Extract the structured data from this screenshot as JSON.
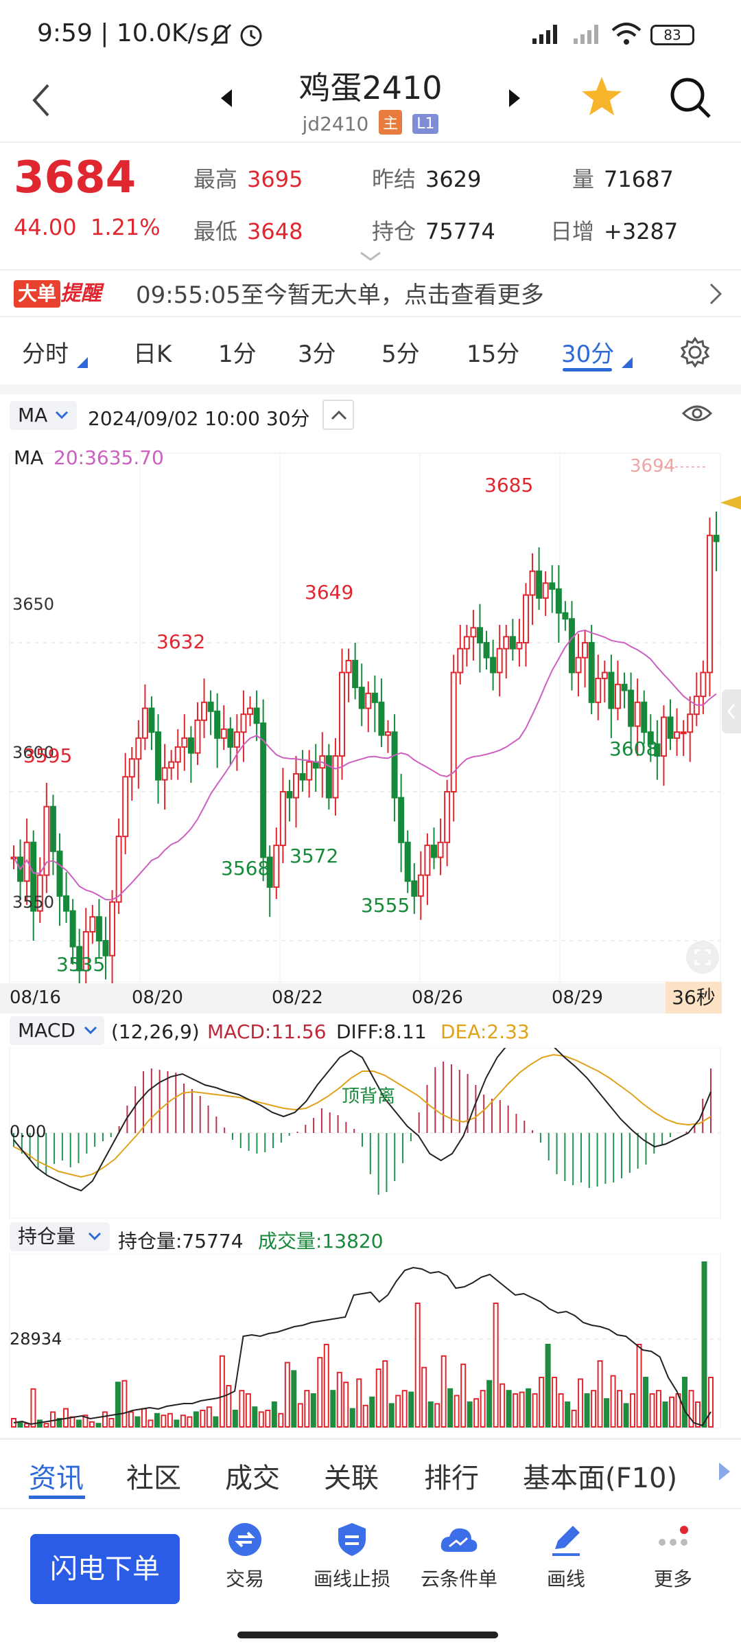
{
  "status_bar": {
    "time": "9:59 | 10.0K/s",
    "battery": "83"
  },
  "header": {
    "title": "鸡蛋2410",
    "code": "jd2410",
    "badge_main": "主",
    "badge_l1": "L1"
  },
  "quote": {
    "last": "3684",
    "change": "44.00",
    "change_pct": "1.21%",
    "high_label": "最高",
    "high": "3695",
    "low_label": "最低",
    "low": "3648",
    "prev_settle_label": "昨结",
    "prev_settle": "3629",
    "open_interest_label": "持仓",
    "open_interest": "75774",
    "volume_label": "量",
    "volume": "71687",
    "daily_inc_label": "日增",
    "daily_inc": "+3287"
  },
  "alert": {
    "tag1": "大单",
    "tag2": "提醒",
    "text": "09:55:05至今暂无大单，点击查看更多"
  },
  "timeframes": [
    {
      "label": "分时"
    },
    {
      "label": "日K"
    },
    {
      "label": "1分"
    },
    {
      "label": "3分"
    },
    {
      "label": "5分"
    },
    {
      "label": "15分"
    },
    {
      "label": "30分"
    }
  ],
  "chart_header": {
    "indicator": "MA",
    "datetime": "2024/09/02 10:00  30分"
  },
  "main_chart": {
    "ma_label": "MA",
    "ma_value": "20:3635.70",
    "y_ticks": [
      "3650",
      "3600",
      "3550"
    ],
    "dates": [
      "08/16",
      "08/20",
      "08/22",
      "08/26",
      "08/29"
    ],
    "countdown": "36秒",
    "annotations": {
      "high_3632": "3632",
      "high_3649": "3649",
      "high_3685": "3685",
      "high_3694": "3694",
      "low_3535": "3535",
      "low_3568": "3568",
      "low_3572": "3572",
      "low_3555": "3555",
      "low_3608": "3608",
      "left_3595": "3595"
    },
    "colors": {
      "up": "#e0262f",
      "down": "#17893a",
      "ma": "#cc5fbf"
    }
  },
  "macd": {
    "name": "MACD",
    "params": "(12,26,9)",
    "macd": "MACD:11.56",
    "diff": "DIFF:8.11",
    "dea": "DEA:2.33",
    "zero": "0.00",
    "annotation": "顶背离"
  },
  "oi_chart": {
    "name": "持仓量",
    "oi": "持仓量:75774",
    "vol": "成交量:13820",
    "y_tick": "28934"
  },
  "bottom_tabs": [
    {
      "label": "资讯"
    },
    {
      "label": "社区"
    },
    {
      "label": "成交"
    },
    {
      "label": "关联"
    },
    {
      "label": "排行"
    },
    {
      "label": "基本面(F10)"
    }
  ],
  "toolbar": {
    "flash_order": "闪电下单",
    "items": [
      {
        "label": "交易"
      },
      {
        "label": "画线止损"
      },
      {
        "label": "云条件单"
      },
      {
        "label": "画线"
      },
      {
        "label": "更多"
      }
    ]
  }
}
